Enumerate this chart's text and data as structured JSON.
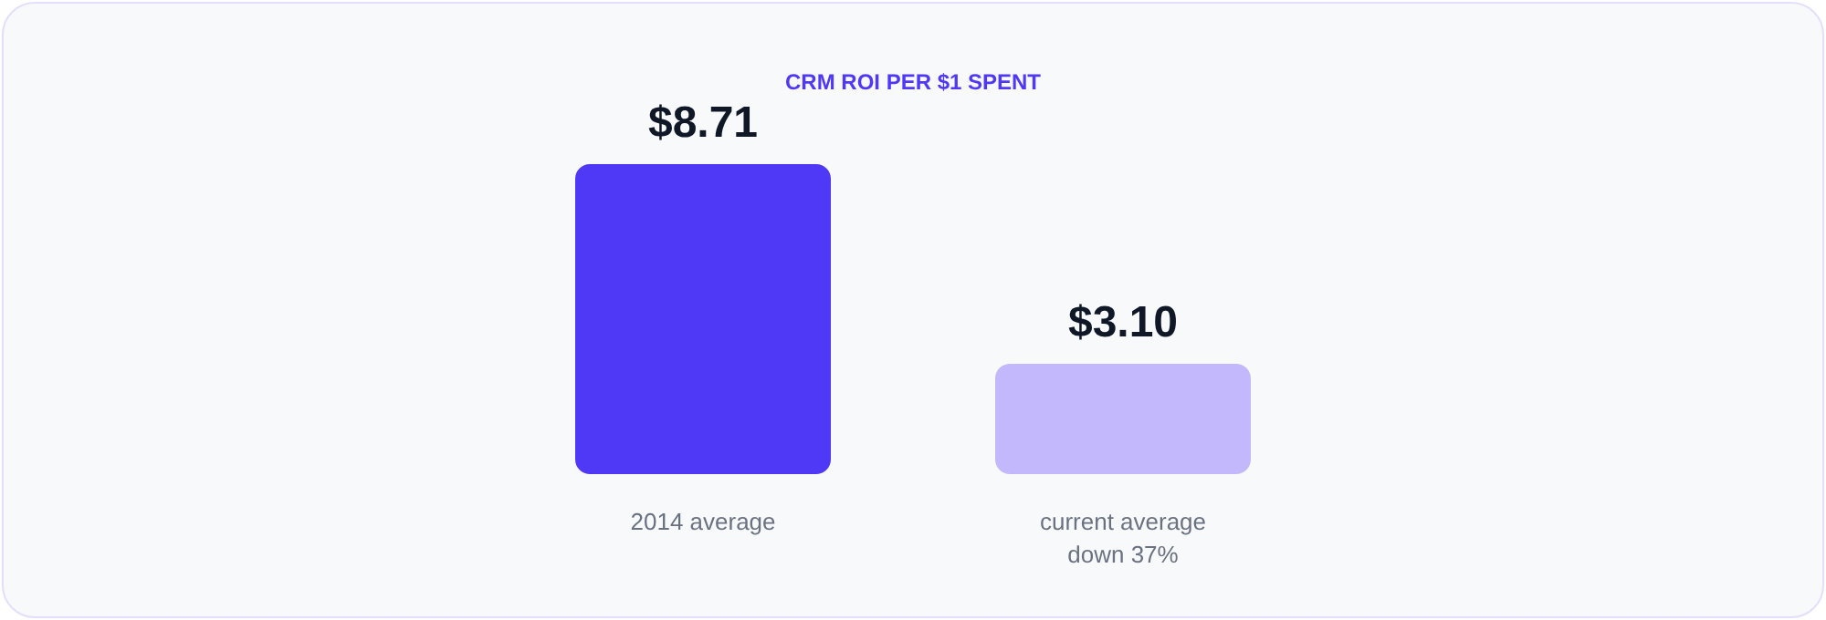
{
  "chart_data": {
    "type": "bar",
    "title": "CRM ROI PER $1 SPENT",
    "categories": [
      "2014 average",
      "current average\ndown 37%"
    ],
    "values": [
      8.71,
      3.1
    ],
    "colors": [
      "#4f39f6",
      "#c4b8fd"
    ],
    "value_labels": [
      "$8.71",
      "$3.10"
    ],
    "grid": false
  }
}
